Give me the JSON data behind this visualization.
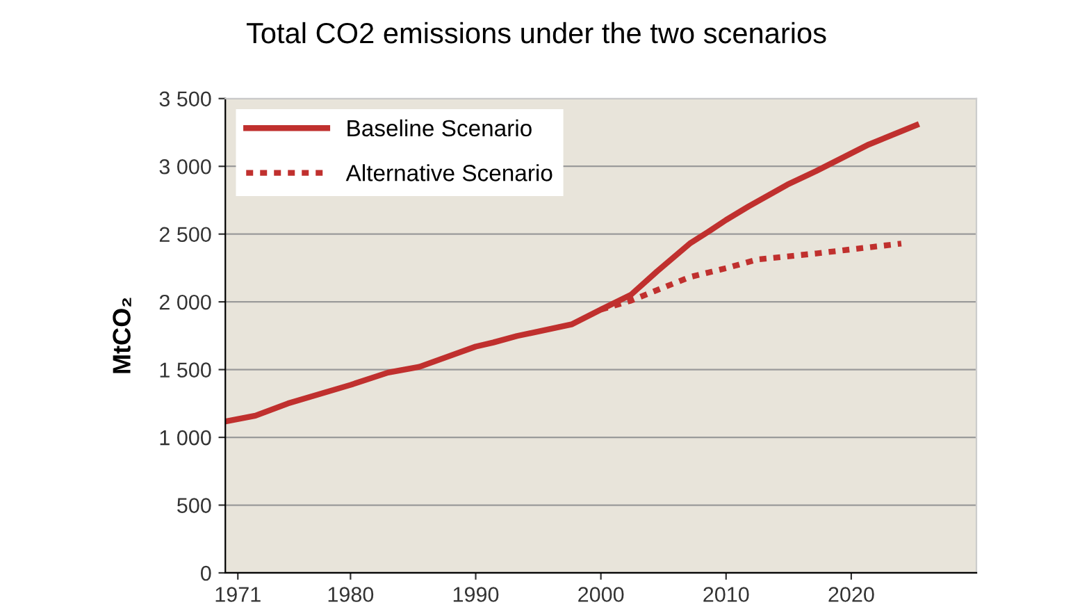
{
  "chart_data": {
    "type": "line",
    "title": "Total CO2 emissions under the two scenarios",
    "ylabel": "MtCO₂",
    "xlim": [
      1970,
      2030
    ],
    "xticks": [
      1971,
      1980,
      1990,
      2000,
      2010,
      2020
    ],
    "ylim": [
      0,
      3500
    ],
    "yticks": [
      0,
      500,
      {
        "value": 1000,
        "label": "1 000"
      },
      {
        "value": 1500,
        "label": "1 500"
      },
      {
        "value": 2000,
        "label": "2 000"
      },
      {
        "value": 2500,
        "label": "2 500"
      },
      {
        "value": 3000,
        "label": "3 000"
      },
      {
        "value": 3500,
        "label": "3 500"
      }
    ],
    "grid": "y",
    "legend": "top left",
    "marker": "none",
    "series": [
      {
        "name": "Baseline Scenario",
        "color": "#c0302e",
        "line_style": "solid",
        "x": [
          1970,
          1972.4,
          1975,
          1980,
          1983,
          1985.5,
          1990,
          1991.4,
          1993.3,
          1997.7,
          2000,
          2002.4,
          2004.5,
          2007.1,
          2008.8,
          2010,
          2011.8,
          2014.9,
          2017.2,
          2020,
          2021.4,
          2025.2
        ],
        "values": [
          1117,
          1160,
          1250,
          1387,
          1478,
          1520,
          1670,
          1700,
          1748,
          1835,
          1943,
          2052,
          2226,
          2430,
          2530,
          2604,
          2704,
          2865,
          2965,
          3096,
          3161,
          3304
        ]
      },
      {
        "name": "Alternative Scenario",
        "color": "#c0302e",
        "line_style": "dotted",
        "x": [
          2000,
          2002.4,
          2007.1,
          2010,
          2012.5,
          2017.2,
          2024
        ],
        "values": [
          1943,
          2009,
          2183,
          2248,
          2313,
          2357,
          2430
        ]
      }
    ]
  }
}
